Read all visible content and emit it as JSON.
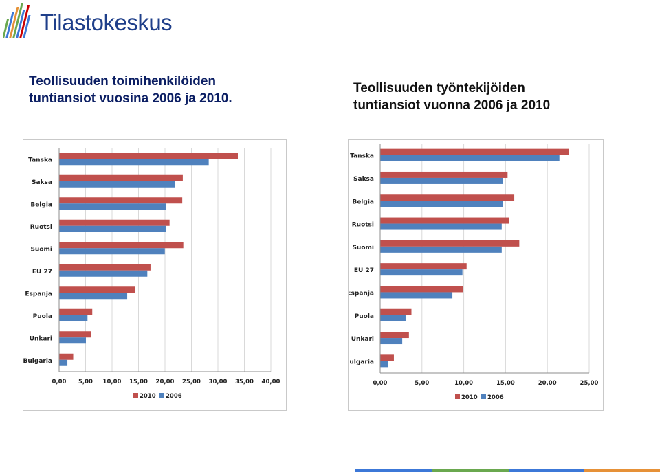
{
  "logo": {
    "text": "Tilastokeskus"
  },
  "titles": {
    "left": [
      "Teollisuuden toimihenkilöiden",
      "tuntiansiot vuosina 2006 ja 2010."
    ],
    "right": [
      "Teollisuuden työntekijöiden",
      "tuntiansiot vuonna 2006 ja 2010"
    ]
  },
  "colors": {
    "series_2010": "#c0504d",
    "series_2006": "#4f81bd",
    "logo_blue": "#1f3f8a"
  },
  "chart_data": [
    {
      "type": "bar",
      "orientation": "horizontal",
      "categories": [
        "Tanska",
        "Saksa",
        "Belgia",
        "Ruotsi",
        "Suomi",
        "EU 27",
        "Espanja",
        "Puola",
        "Unkari",
        "Bulgaria"
      ],
      "series": [
        {
          "name": "2010",
          "values": [
            33.7,
            23.3,
            23.2,
            20.8,
            23.4,
            17.2,
            14.3,
            6.2,
            6.0,
            2.6
          ]
        },
        {
          "name": "2006",
          "values": [
            28.2,
            21.8,
            20.1,
            20.1,
            19.9,
            16.6,
            12.8,
            5.3,
            5.0,
            1.5
          ]
        }
      ],
      "xlim": [
        0,
        40
      ],
      "xticks": [
        "0,00",
        "5,00",
        "10,00",
        "15,00",
        "20,00",
        "25,00",
        "30,00",
        "35,00",
        "40,00"
      ],
      "xtick_values": [
        0,
        5,
        10,
        15,
        20,
        25,
        30,
        35,
        40
      ],
      "legend": [
        "2010",
        "2006"
      ],
      "legend_position": "bottom",
      "grid": true
    },
    {
      "type": "bar",
      "orientation": "horizontal",
      "categories": [
        "Tanska",
        "Saksa",
        "Belgia",
        "Ruotsi",
        "Suomi",
        "EU 27",
        "Espanja",
        "Puola",
        "Unkari",
        "Bulgaria"
      ],
      "series": [
        {
          "name": "2010",
          "values": [
            22.5,
            15.2,
            16.0,
            15.4,
            16.6,
            10.3,
            9.9,
            3.7,
            3.4,
            1.6
          ]
        },
        {
          "name": "2006",
          "values": [
            21.4,
            14.6,
            14.6,
            14.5,
            14.5,
            9.8,
            8.6,
            3.0,
            2.6,
            0.9
          ]
        }
      ],
      "xlim": [
        0,
        25
      ],
      "xticks": [
        "0,00",
        "5,00",
        "10,00",
        "15,00",
        "20,00",
        "25,00"
      ],
      "xtick_values": [
        0,
        5,
        10,
        15,
        20,
        25
      ],
      "legend": [
        "2010",
        "2006"
      ],
      "legend_position": "bottom",
      "grid": true
    }
  ]
}
